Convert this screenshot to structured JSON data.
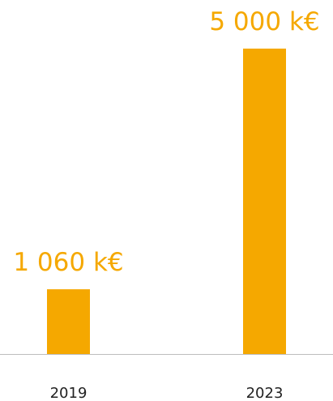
{
  "chart_data": {
    "type": "bar",
    "categories": [
      "2019",
      "2023"
    ],
    "values": [
      1060,
      5000
    ],
    "value_labels": [
      "1 060 k€",
      "5 000 k€"
    ],
    "color": "#f5a800"
  }
}
